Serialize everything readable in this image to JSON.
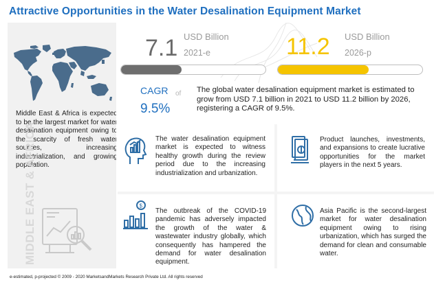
{
  "title": "Attractive Opportunities in the Water Desalination Equipment Market",
  "left_panel": {
    "region_text": "Middle East & Africa is expected to be the largest market for water desalination equipment owing to the scarcity of fresh water sources, increasing industrialization, and growing population.",
    "vertical_label": "MIDDLE EAST & AFRICA",
    "icons": [
      "world-map-icon",
      "analytics-icon"
    ]
  },
  "market_size": {
    "start": {
      "value": "7.1",
      "unit": "USD Billion",
      "year": "2021-e",
      "color": "#6e6e6e",
      "fill_fraction": 0.42
    },
    "end": {
      "value": "11.2",
      "unit": "USD Billion",
      "year": "2026-p",
      "color": "#f5c400",
      "fill_fraction": 0.63
    }
  },
  "cagr": {
    "label": "CAGR",
    "of": "of",
    "value": "9.5%",
    "color": "#1f6fbf"
  },
  "summary": "The global water desalination equipment market is estimated to grow from USD 7.1 billion in 2021 to USD 11.2 billion by 2026, registering a CAGR of 9.5%.",
  "highlights": [
    {
      "icon": "growth-head-icon",
      "text": "The water desalination equipment market is expected to witness healthy growth during the review period due to the increasing industrialization and urbanization."
    },
    {
      "icon": "money-icon",
      "text": "Product launches, investments, and expansions to create lucrative opportunities for the market players in the next 5 years."
    },
    {
      "icon": "bar-chart-dollar-icon",
      "text": "The outbreak of the COVID-19 pandemic has adversely impacted the growth of the water & wastewater industry globally, which consequently has hampered the demand for water desalination equipment."
    },
    {
      "icon": "globe-icon",
      "text": "Asia Pacific is the second-largest market for water desalination equipment owing to rising urbanization, which has surged the demand for clean and consumable water."
    }
  ],
  "accent_color": "#1f6fbf",
  "footnote": "e-estimated, p-projected © 2009 - 2020 MarketsandMarkets Research Private Ltd. All rights reserved"
}
